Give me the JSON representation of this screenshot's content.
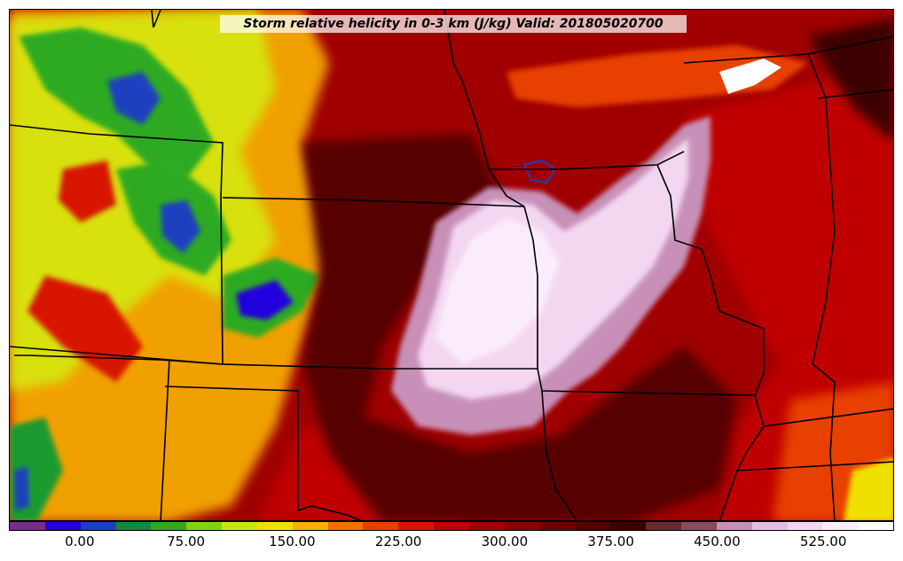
{
  "title": "Storm relative helicity in 0-3 km (J/kg) Valid: 201805020700",
  "colorbar": {
    "min": -50,
    "max": 575,
    "levels": [
      -50,
      -25,
      0,
      25,
      50,
      75,
      100,
      125,
      150,
      175,
      200,
      225,
      250,
      275,
      300,
      325,
      350,
      375,
      400,
      425,
      450,
      475,
      500,
      525,
      550,
      575
    ],
    "colors": [
      "#7b2b8e",
      "#2200dd",
      "#1a3fc0",
      "#0e8a3a",
      "#2eaa20",
      "#7fd214",
      "#c8e80c",
      "#f0e000",
      "#f5b000",
      "#f07000",
      "#e84000",
      "#d81400",
      "#c00000",
      "#a00000",
      "#8a0000",
      "#700000",
      "#560000",
      "#3c0000",
      "#6a2830",
      "#8c4a60",
      "#c890b8",
      "#e6bce0",
      "#f3d7f1",
      "#fbecfb",
      "#ffffff"
    ],
    "ticks": [
      "0.00",
      "75.00",
      "150.00",
      "225.00",
      "300.00",
      "375.00",
      "450.00",
      "525.00"
    ],
    "tick_values": [
      0,
      75,
      150,
      225,
      300,
      375,
      450,
      525
    ]
  }
}
